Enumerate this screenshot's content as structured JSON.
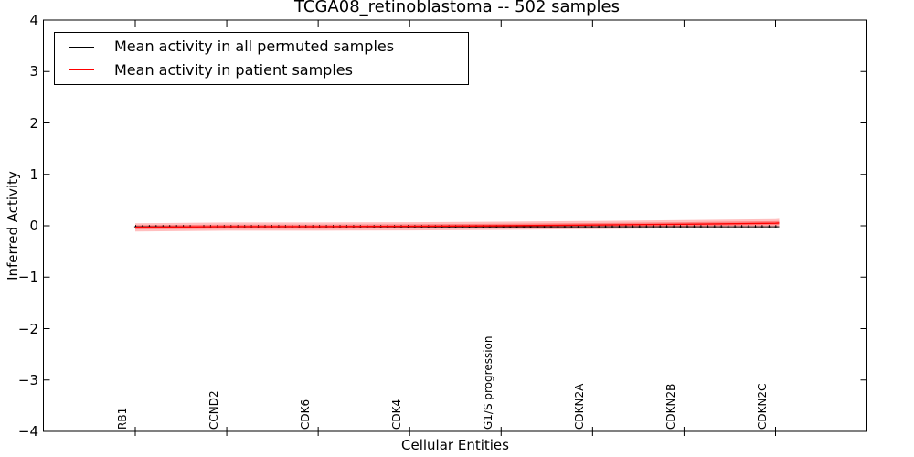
{
  "title": "TCGA08_retinoblastoma -- 502 samples",
  "axes": {
    "ylabel": "Inferred Activity",
    "xlabel": "Cellular Entities",
    "ytick_labels": [
      "4",
      "3",
      "2",
      "1",
      "0",
      "−1",
      "−2",
      "−3",
      "−4"
    ],
    "xtick_labels": [
      "RB1",
      "CCND2",
      "CDK6",
      "CDK4",
      "G1/S progression",
      "CDKN2A",
      "CDKN2B",
      "CDKN2C"
    ]
  },
  "legend": {
    "items": [
      {
        "label": "Mean activity in all permuted samples",
        "color": "#000000"
      },
      {
        "label": "Mean activity in patient samples",
        "color": "#ff0000"
      }
    ]
  },
  "chart_data": {
    "type": "line",
    "title": "TCGA08_retinoblastoma -- 502 samples",
    "xlabel": "Cellular Entities",
    "ylabel": "Inferred Activity",
    "ylim": [
      -4,
      4
    ],
    "yticks": [
      4,
      3,
      2,
      1,
      0,
      -1,
      -2,
      -3,
      -4
    ],
    "grid": false,
    "legend_position": "upper left",
    "categories": [
      "RB1",
      "CCND2",
      "CDK6",
      "CDK4",
      "G1/S progression",
      "CDKN2A",
      "CDKN2B",
      "CDKN2C"
    ],
    "series": [
      {
        "name": "Mean activity in all permuted samples",
        "color": "#000000",
        "marker": "+",
        "values": [
          -0.02,
          -0.02,
          -0.02,
          -0.02,
          -0.02,
          -0.02,
          -0.02,
          -0.02
        ]
      },
      {
        "name": "Mean activity in patient samples",
        "color": "#ff0000",
        "uncertainty_band_halfwidth": 0.08,
        "values": [
          -0.03,
          -0.016,
          -0.016,
          -0.011,
          0.0,
          0.014,
          0.03,
          0.05
        ]
      }
    ]
  }
}
